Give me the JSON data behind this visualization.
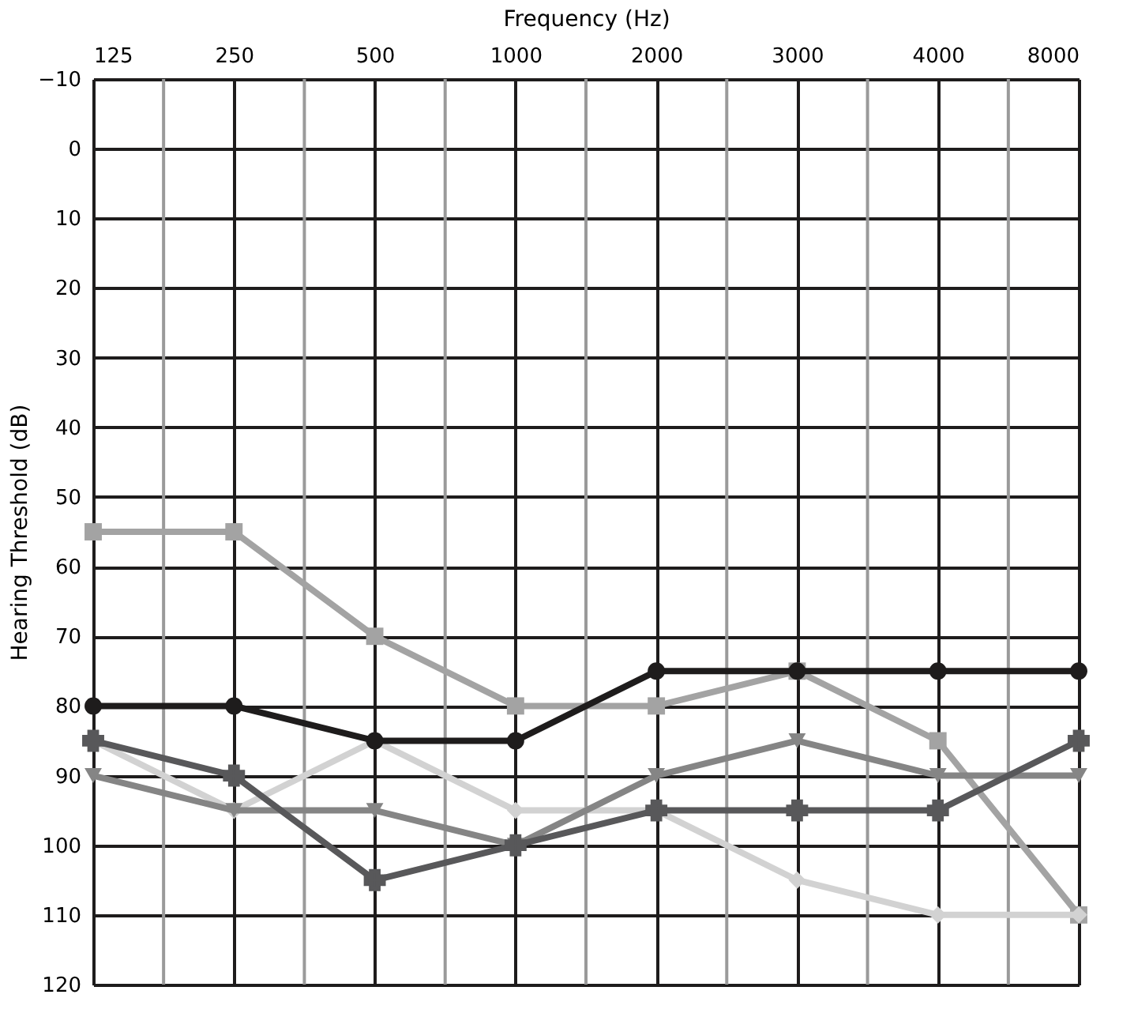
{
  "chart_data": {
    "type": "line",
    "xlabel": "Frequency (Hz)",
    "ylabel": "Hearing Threshold (dB)",
    "categories": [
      "125",
      "250",
      "500",
      "1000",
      "2000",
      "3000",
      "4000",
      "8000"
    ],
    "ylim": [
      120,
      -10
    ],
    "yticks": [
      -10,
      0,
      10,
      20,
      30,
      40,
      50,
      60,
      70,
      80,
      90,
      100,
      110,
      120
    ],
    "grid": true,
    "series": [
      {
        "color": "#a3a3a3",
        "marker": "square",
        "values": [
          55,
          55,
          70,
          80,
          80,
          75,
          85,
          110
        ]
      },
      {
        "color": "#d2d2d2",
        "marker": "diamond",
        "values": [
          85,
          95,
          85,
          95,
          95,
          105,
          110,
          110
        ]
      },
      {
        "color": "#858585",
        "marker": "triangle",
        "values": [
          90,
          95,
          95,
          100,
          90,
          85,
          90,
          90
        ]
      },
      {
        "color": "#58585a",
        "marker": "cross",
        "values": [
          85,
          90,
          105,
          100,
          95,
          95,
          95,
          85
        ]
      },
      {
        "color": "#1e1c1c",
        "marker": "circle",
        "values": [
          80,
          80,
          85,
          85,
          75,
          75,
          75,
          75
        ]
      }
    ]
  }
}
